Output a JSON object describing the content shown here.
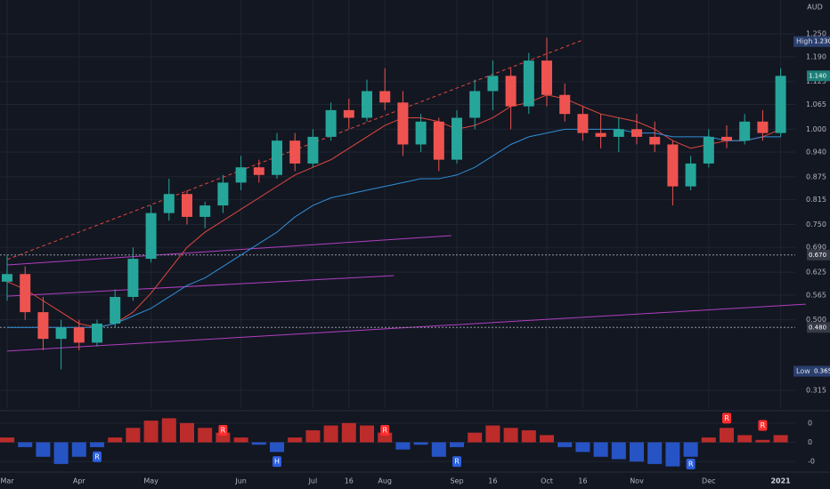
{
  "chart_data": {
    "type": "candlestick",
    "currency": "AUD",
    "categories": [
      "Mar",
      null,
      null,
      null,
      "Apr",
      null,
      null,
      null,
      "May",
      null,
      null,
      null,
      null,
      "Jun",
      null,
      null,
      null,
      "Jul",
      null,
      "16",
      null,
      "Aug",
      null,
      null,
      null,
      "Sep",
      null,
      "16",
      null,
      null,
      "Oct",
      null,
      "16",
      null,
      null,
      "Nov",
      null,
      null,
      null,
      "Dec",
      null,
      null,
      null,
      "2021"
    ],
    "open": [
      0.6,
      0.62,
      0.52,
      0.45,
      0.48,
      0.44,
      0.49,
      0.56,
      0.66,
      0.78,
      0.83,
      0.77,
      0.8,
      0.86,
      0.9,
      0.88,
      0.97,
      0.91,
      0.98,
      1.05,
      1.03,
      1.1,
      1.07,
      0.96,
      1.02,
      0.92,
      1.03,
      1.1,
      1.14,
      1.06,
      1.18,
      1.09,
      1.04,
      0.99,
      0.98,
      1.0,
      0.98,
      0.96,
      0.85,
      0.91,
      0.98,
      0.97,
      1.02,
      0.99
    ],
    "high": [
      0.67,
      0.64,
      0.56,
      0.5,
      0.5,
      0.5,
      0.58,
      0.69,
      0.8,
      0.87,
      0.84,
      0.81,
      0.88,
      0.93,
      0.92,
      0.99,
      0.99,
      1.0,
      1.07,
      1.08,
      1.13,
      1.16,
      1.1,
      1.04,
      1.03,
      1.05,
      1.13,
      1.18,
      1.16,
      1.2,
      1.24,
      1.12,
      1.06,
      1.04,
      1.03,
      1.04,
      1.02,
      0.97,
      0.93,
      1.0,
      1.01,
      1.04,
      1.05,
      1.16
    ],
    "low": [
      0.55,
      0.5,
      0.42,
      0.37,
      0.42,
      0.43,
      0.48,
      0.55,
      0.65,
      0.76,
      0.75,
      0.74,
      0.78,
      0.84,
      0.86,
      0.87,
      0.89,
      0.9,
      0.97,
      1.0,
      1.02,
      1.05,
      0.93,
      0.94,
      0.89,
      0.91,
      1.0,
      1.05,
      1.0,
      1.04,
      1.06,
      1.02,
      0.97,
      0.95,
      0.94,
      0.96,
      0.94,
      0.8,
      0.84,
      0.9,
      0.95,
      0.96,
      0.97,
      0.98
    ],
    "close": [
      0.62,
      0.52,
      0.45,
      0.48,
      0.44,
      0.49,
      0.56,
      0.66,
      0.78,
      0.83,
      0.77,
      0.8,
      0.86,
      0.9,
      0.88,
      0.97,
      0.91,
      0.98,
      1.05,
      1.03,
      1.1,
      1.07,
      0.96,
      1.02,
      0.92,
      1.03,
      1.1,
      1.14,
      1.06,
      1.18,
      1.09,
      1.04,
      0.99,
      0.98,
      1.0,
      0.98,
      0.96,
      0.85,
      0.91,
      0.98,
      0.97,
      1.02,
      0.99,
      1.14
    ],
    "up_color": "#26a69a",
    "down_color": "#ef5350",
    "series": [
      {
        "color": "#e0473f",
        "values": [
          0.6,
          0.58,
          0.55,
          0.52,
          0.49,
          0.48,
          0.49,
          0.52,
          0.57,
          0.63,
          0.69,
          0.73,
          0.76,
          0.79,
          0.82,
          0.85,
          0.88,
          0.9,
          0.92,
          0.95,
          0.98,
          1.01,
          1.03,
          1.03,
          1.02,
          1.0,
          1.01,
          1.03,
          1.06,
          1.07,
          1.09,
          1.08,
          1.06,
          1.04,
          1.03,
          1.02,
          1.0,
          0.97,
          0.95,
          0.96,
          0.97,
          0.97,
          0.98,
          1.0
        ]
      },
      {
        "color": "#2f8fd8",
        "values": [
          0.48,
          0.48,
          0.48,
          0.48,
          0.48,
          0.48,
          0.49,
          0.51,
          0.53,
          0.56,
          0.59,
          0.61,
          0.64,
          0.67,
          0.7,
          0.73,
          0.77,
          0.8,
          0.82,
          0.83,
          0.84,
          0.85,
          0.86,
          0.87,
          0.87,
          0.88,
          0.9,
          0.93,
          0.96,
          0.98,
          0.99,
          1.0,
          1.0,
          1.0,
          1.0,
          0.99,
          0.99,
          0.98,
          0.98,
          0.98,
          0.97,
          0.97,
          0.98,
          0.98
        ]
      }
    ],
    "trendlines": [
      {
        "color": "#b03fc0",
        "dash": false,
        "x": [
          0,
          24.7
        ],
        "values": [
          0.644,
          0.721
        ]
      },
      {
        "color": "#b03fc0",
        "dash": false,
        "x": [
          0,
          21.5
        ],
        "values": [
          0.562,
          0.616
        ]
      },
      {
        "color": "#b03fc0",
        "dash": false,
        "x": [
          0,
          44.4
        ],
        "values": [
          0.418,
          0.541
        ]
      },
      {
        "color": "#e0473f",
        "dash": true,
        "x": [
          0,
          32
        ],
        "values": [
          0.658,
          1.234
        ]
      }
    ],
    "price_markers": [
      {
        "name": "High",
        "value": 1.23,
        "label": "1.230",
        "color": "#2a3f6e",
        "line": false
      },
      {
        "value": 1.14,
        "label": "1.140",
        "color": "#1e7f78",
        "line": false
      },
      {
        "value": 0.67,
        "label": "0.670",
        "color": "#363a45",
        "line": true
      },
      {
        "value": 0.48,
        "label": "0.480",
        "color": "#363a45",
        "line": true
      },
      {
        "name": "Low",
        "value": 0.365,
        "label": "0.365",
        "color": "#2a3f6e",
        "line": false
      }
    ],
    "ylim": [
      0.266,
      1.339
    ],
    "yticks": [
      {
        "value": 1.25,
        "label": "1.250"
      },
      {
        "value": 1.19,
        "label": "1.190"
      },
      {
        "value": 1.125,
        "label": "1.125"
      },
      {
        "value": 1.065,
        "label": "1.065"
      },
      {
        "value": 1.0,
        "label": "1.000"
      },
      {
        "value": 0.94,
        "label": "0.940"
      },
      {
        "value": 0.875,
        "label": "0.875"
      },
      {
        "value": 0.815,
        "label": "0.815"
      },
      {
        "value": 0.75,
        "label": "0.750"
      },
      {
        "value": 0.69,
        "label": "0.690"
      },
      {
        "value": 0.625,
        "label": "0.625"
      },
      {
        "value": 0.565,
        "label": "0.565"
      },
      {
        "value": 0.5,
        "label": "0.500"
      },
      {
        "value": 0.315,
        "label": "0.315"
      }
    ],
    "grid": true,
    "oscillator": {
      "values": [
        0.1,
        -0.1,
        -0.3,
        -0.45,
        -0.3,
        -0.1,
        0.1,
        0.3,
        0.45,
        0.5,
        0.4,
        0.3,
        0.2,
        0.1,
        -0.05,
        -0.2,
        0.1,
        0.25,
        0.35,
        0.4,
        0.35,
        0.2,
        -0.15,
        -0.05,
        -0.3,
        -0.1,
        0.2,
        0.35,
        0.3,
        0.25,
        0.15,
        -0.1,
        -0.2,
        -0.3,
        -0.35,
        -0.4,
        -0.45,
        -0.5,
        -0.3,
        0.1,
        0.3,
        0.15,
        0.05,
        0.15
      ],
      "positive_color": "#d9302b",
      "negative_color": "#2b5fe0",
      "ylim": [
        -0.6,
        0.6
      ],
      "yticks": [
        {
          "value": 0.4,
          "label": "0"
        },
        {
          "value": 0,
          "label": "0"
        },
        {
          "value": -0.4,
          "label": "-0"
        }
      ],
      "annotations": [
        {
          "label": "R",
          "x": 5,
          "value": -0.3,
          "color": "#2b5fe0"
        },
        {
          "label": "R",
          "x": 12,
          "value": 0.25,
          "color": "#ff2d2d"
        },
        {
          "label": "H",
          "x": 15,
          "value": -0.4,
          "color": "#2b5fe0"
        },
        {
          "label": "R",
          "x": 21,
          "value": 0.25,
          "color": "#ff2d2d"
        },
        {
          "label": "R",
          "x": 25,
          "value": -0.4,
          "color": "#2b5fe0"
        },
        {
          "label": "R",
          "x": 38,
          "value": -0.45,
          "color": "#2b5fe0"
        },
        {
          "label": "R",
          "x": 40,
          "value": 0.5,
          "color": "#ff2d2d"
        },
        {
          "label": "R",
          "x": 42,
          "value": 0.35,
          "color": "#ff2d2d"
        }
      ]
    }
  }
}
